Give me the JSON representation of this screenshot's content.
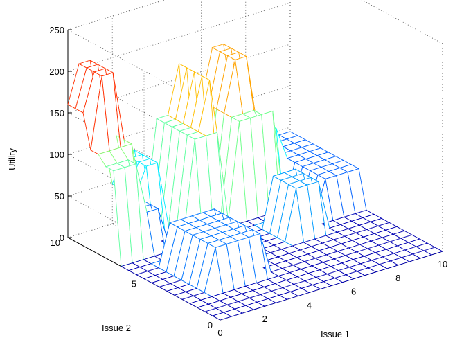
{
  "chart_data": {
    "type": "surface",
    "title": "",
    "xlabel": "Issue 1",
    "ylabel": "Issue 2",
    "zlabel": "Utility",
    "xlim": [
      0,
      10
    ],
    "ylim": [
      0,
      10
    ],
    "zlim": [
      0,
      250
    ],
    "xticks": [
      0,
      2,
      4,
      6,
      8,
      10
    ],
    "yticks": [
      0,
      5,
      10
    ],
    "zticks": [
      0,
      50,
      100,
      150,
      200,
      250
    ],
    "grid": true,
    "colormap": "jet",
    "peaks": [
      {
        "issue1": 0.5,
        "issue2": 9.0,
        "utility": 220
      },
      {
        "issue1": 5.0,
        "issue2": 8.0,
        "utility": 175
      },
      {
        "issue1": 6.5,
        "issue2": 8.5,
        "utility": 180
      }
    ]
  }
}
